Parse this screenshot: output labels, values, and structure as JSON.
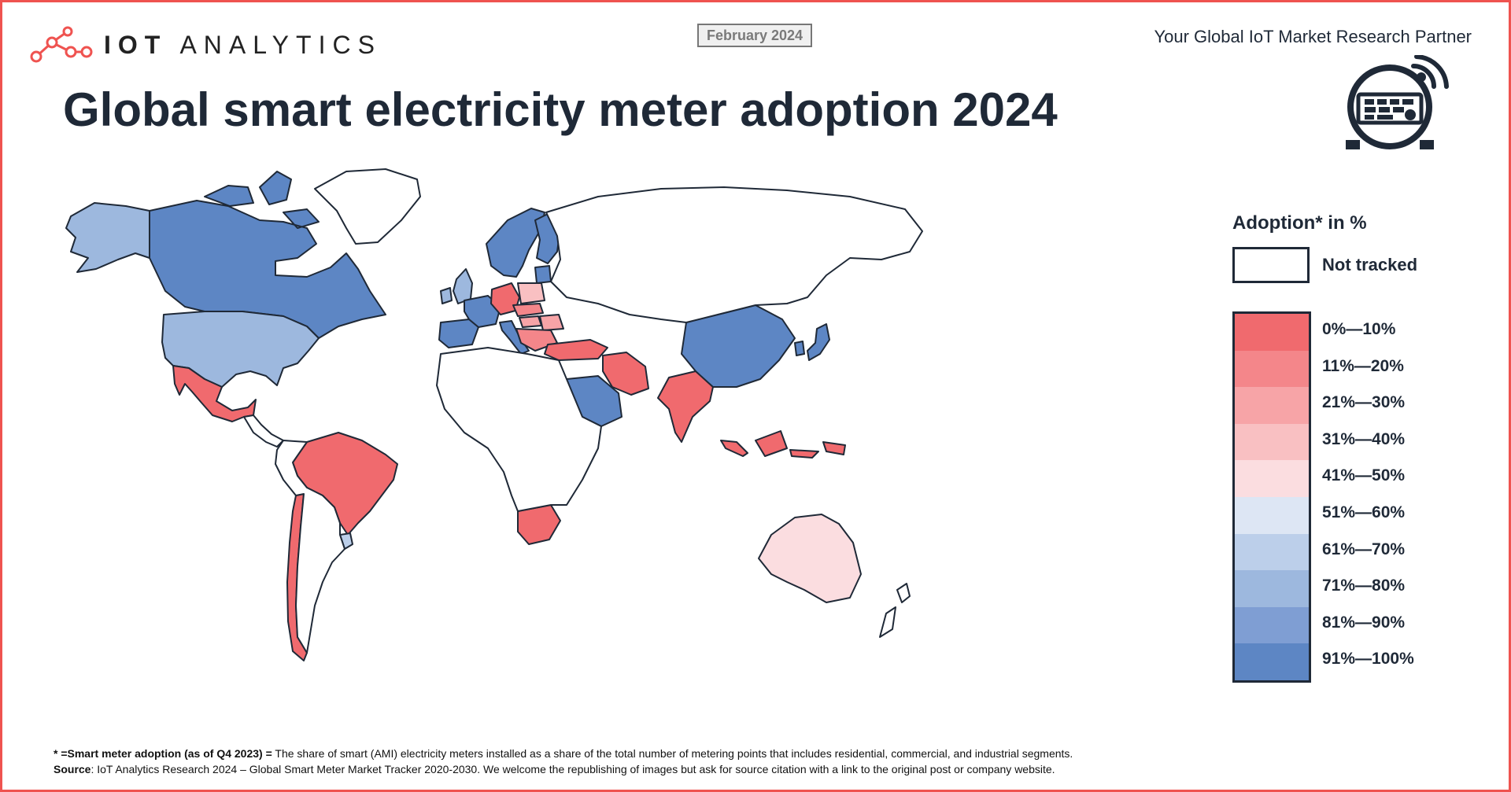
{
  "header": {
    "brand": "IOT ANALYTICS",
    "brand_bold": "IOT",
    "brand_light": "ANALYTICS",
    "date": "February 2024",
    "partner": "Your Global IoT Market Research Partner",
    "title": "Global smart electricity meter adoption 2024"
  },
  "colors": {
    "accent": "#ef5350",
    "border_line": "#1f2937",
    "not_tracked": "#ffffff",
    "scale": [
      "#f06a6e",
      "#f4868a",
      "#f7a4a7",
      "#f9c0c2",
      "#fbdde0",
      "#dde6f4",
      "#bccfea",
      "#9db8de",
      "#7f9ed3",
      "#5d86c4"
    ]
  },
  "legend": {
    "title": "Adoption* in %",
    "not_tracked": "Not tracked",
    "bins": [
      "0%—10%",
      "11%—20%",
      "21%—30%",
      "31%—40%",
      "41%—50%",
      "51%—60%",
      "61%—70%",
      "71%—80%",
      "81%—90%",
      "91%—100%"
    ]
  },
  "map_data": {
    "regions": [
      {
        "name": "Alaska",
        "bin": 7
      },
      {
        "name": "Canada",
        "bin": 9
      },
      {
        "name": "Greenland",
        "bin": null
      },
      {
        "name": "United States",
        "bin": 7
      },
      {
        "name": "Mexico",
        "bin": 0
      },
      {
        "name": "Central America",
        "bin": null
      },
      {
        "name": "Brazil",
        "bin": 0
      },
      {
        "name": "Chile",
        "bin": 0
      },
      {
        "name": "Uruguay",
        "bin": 6
      },
      {
        "name": "Argentina / rest of South America",
        "bin": null
      },
      {
        "name": "Scandinavia",
        "bin": 9
      },
      {
        "name": "Finland",
        "bin": 9
      },
      {
        "name": "Baltics",
        "bin": 9
      },
      {
        "name": "United Kingdom",
        "bin": 7
      },
      {
        "name": "Ireland",
        "bin": 7
      },
      {
        "name": "Iberia",
        "bin": 9
      },
      {
        "name": "France",
        "bin": 9
      },
      {
        "name": "Italy",
        "bin": 9
      },
      {
        "name": "Germany",
        "bin": 0
      },
      {
        "name": "Poland",
        "bin": 3
      },
      {
        "name": "Czechia / Slovakia",
        "bin": 1
      },
      {
        "name": "Hungary",
        "bin": 2
      },
      {
        "name": "Romania",
        "bin": 2
      },
      {
        "name": "Balkans",
        "bin": 1
      },
      {
        "name": "Turkey",
        "bin": 0
      },
      {
        "name": "Iran",
        "bin": 0
      },
      {
        "name": "Saudi Arabia",
        "bin": 9
      },
      {
        "name": "India",
        "bin": 0
      },
      {
        "name": "China",
        "bin": 9
      },
      {
        "name": "South Korea",
        "bin": 9
      },
      {
        "name": "Japan",
        "bin": 9
      },
      {
        "name": "Indonesia",
        "bin": 0
      },
      {
        "name": "South Africa",
        "bin": 0
      },
      {
        "name": "Australia",
        "bin": 4
      },
      {
        "name": "Russia",
        "bin": null
      },
      {
        "name": "Africa (rest)",
        "bin": null
      },
      {
        "name": "New Zealand",
        "bin": null
      }
    ]
  },
  "footnote": {
    "line1_bold": "* =Smart meter adoption (as of Q4 2023) =",
    "line1_rest": " The share of smart (AMI) electricity meters installed as a share of the total number of metering points that includes residential, commercial, and industrial segments.",
    "line2_bold": "Source",
    "line2_rest": ": IoT Analytics Research 2024 – Global Smart Meter Market Tracker 2020-2030. We welcome the republishing of images but ask for source citation with a link to the original post or company website."
  }
}
